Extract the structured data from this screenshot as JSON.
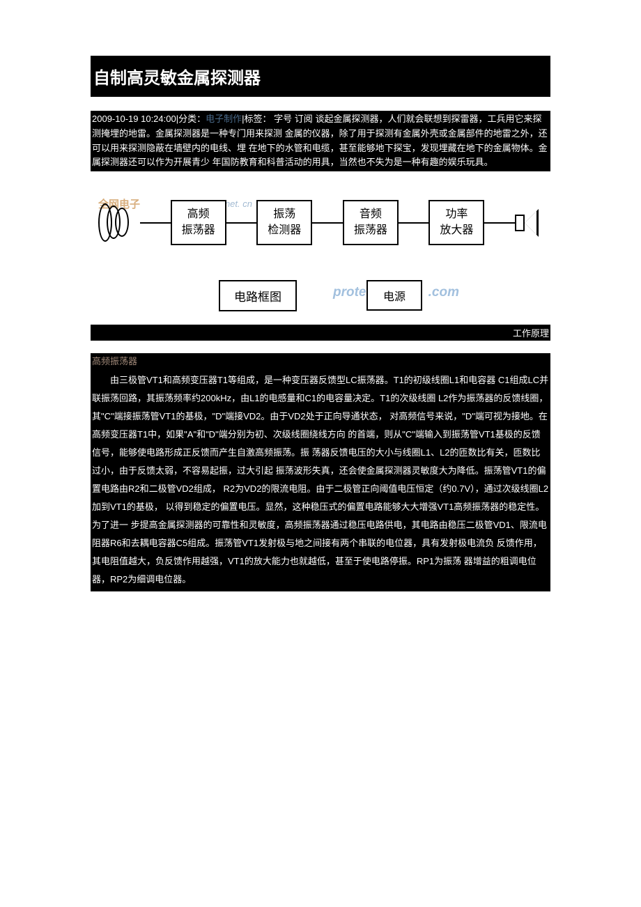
{
  "article": {
    "title": "自制高灵敏金属探测器",
    "date_time": "2009-10-19 10:24:00",
    "meta_separator": "|",
    "category_label": "分类：",
    "category_value": "电子制作",
    "tags_label": "|标签：",
    "font_label": "字号",
    "subscribe_label": "订阅",
    "intro": "谈起金属探测器，人们就会联想到探雷器，工兵用它来探测掩埋的地雷。金属探测器是一种专门用来探测 金属的仪器，除了用于探测有金属外壳或金属部件的地雷之外，还可以用来探测隐蔽在墙壁内的电线、埋 在地下的水管和电缆，甚至能够地下探宝，发现埋藏在地下的金属物体。金属探测器还可以作为开展青少 年国防教育和科普活动的用具，当然也不失为是一种有趣的娱乐玩具。"
  },
  "diagram": {
    "block1_line1": "高频",
    "block1_line2": "振荡器",
    "block2_line1": "振荡",
    "block2_line2": "检测器",
    "block3_line1": "音频",
    "block3_line2": "振荡器",
    "block4_line1": "功率",
    "block4_line2": "放大器",
    "caption": "电路框图",
    "power_label": "电源",
    "watermark_logo": "全网电子",
    "watermark_url1": "www. 0net. cn",
    "watermark_url2_left": "prote",
    "watermark_url2_right": ".com",
    "principle_label": "工作原理"
  },
  "section": {
    "heading": "高频振荡器",
    "body": "由三极管VT1和高频变压器T1等组成，是一种变压器反馈型LC振荡器。T1的初级线圈L1和电容器 C1组成LC并联振荡回路，其振荡频率约200kHz，由L1的电感量和C1的电容量决定。T1的次级线圈 L2作为振荡器的反馈线圈，其\"C\"端接振荡管VT1的基极，\"D\"端接VD2。由于VD2处于正向导通状态， 对高频信号来说，\"D\"端可视为接地。在高频变压器T1中，如果\"A\"和\"D\"端分别为初、次级线圈绕线方向 的首端，则从\"C\"端输入到振荡管VT1基极的反馈信号，能够使电路形成正反馈而产生自激高频振荡。振 荡器反馈电压的大小与线圈L1、L2的匝数比有关，匝数比过小，由于反馈太弱，不容易起振，过大引起 振荡波形失真，还会使金属探测器灵敏度大为降低。振荡管VT1的偏置电路由R2和二极管VD2组成， R2为VD2的限流电阻。由于二极管正向阈值电压恒定（约0.7V），通过次级线圈L2加到VT1的基极， 以得到稳定的偏置电压。显然，这种稳压式的偏置电路能够大大增强VT1高频振荡器的稳定性。为了进一 步提高金属探测器的可靠性和灵敏度，高频振荡器通过稳压电路供电，其电路由稳压二极管VD1、限流电 阻器R6和去耦电容器C5组成。振荡管VT1发射极与地之间接有两个串联的电位器，具有发射极电流负 反馈作用，其电阻值越大，负反馈作用越强，VT1的放大能力也就越低，甚至于使电路停振。RP1为振荡 器增益的粗调电位器，RP2为细调电位器。"
  },
  "colors": {
    "black": "#000000",
    "white": "#ffffff",
    "link_blue": "#4a6a8a",
    "heading_brown": "#a08878",
    "watermark_blue": "rgba(100, 150, 200, 0.6)",
    "logo_orange": "rgba(200, 140, 70, 0.7)"
  }
}
